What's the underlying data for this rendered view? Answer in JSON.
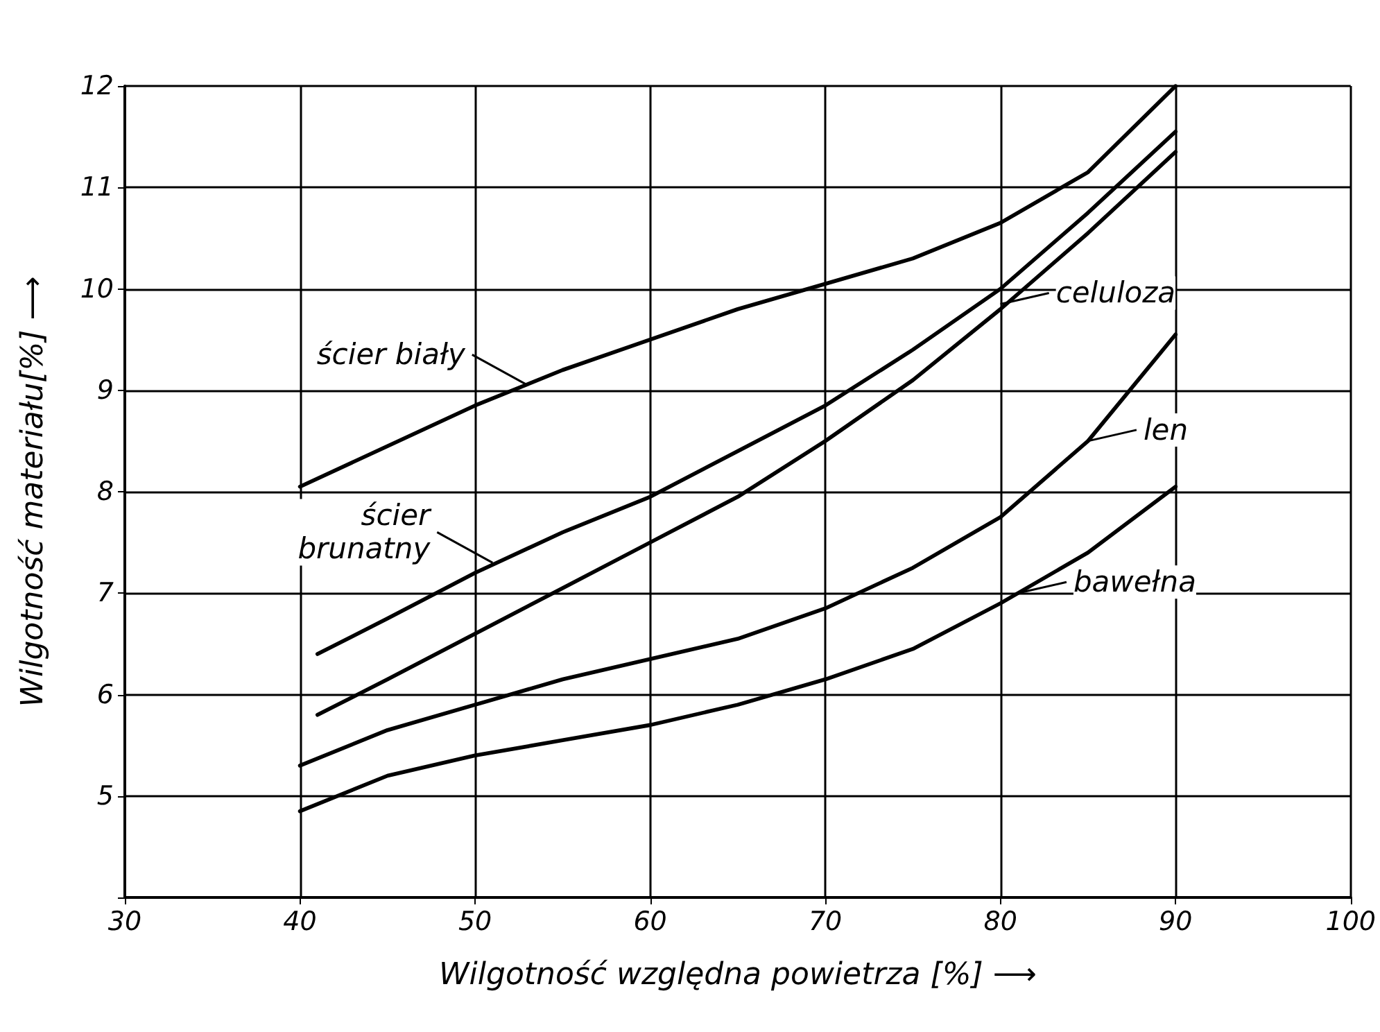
{
  "chart_data": {
    "type": "line",
    "xlabel": "Wilgotność względna powietrza [%] ⟶",
    "ylabel": "Wilgotność materiału[%] ⟶",
    "xlim": [
      30,
      100
    ],
    "xticks": [
      30,
      40,
      50,
      60,
      70,
      80,
      90,
      100
    ],
    "ylim": [
      4,
      12
    ],
    "yticks": [
      {
        "value": 4,
        "label": null
      },
      5,
      6,
      7,
      8,
      9,
      10,
      11,
      12
    ],
    "grid": true,
    "marker": "none",
    "line_style": "solid",
    "series": [
      {
        "color": "#000000",
        "x": [
          40,
          45,
          50,
          55,
          60,
          65,
          70,
          75,
          80,
          85,
          90
        ],
        "values": [
          8.05,
          8.45,
          8.85,
          9.2,
          9.5,
          9.8,
          10.05,
          10.3,
          10.65,
          11.15,
          12
        ]
      },
      {
        "color": "#000000",
        "x": [
          41,
          45,
          50,
          55,
          60,
          65,
          70,
          75,
          80,
          85,
          90
        ],
        "values": [
          6.4,
          6.75,
          7.2,
          7.6,
          7.95,
          8.4,
          8.85,
          9.4,
          10.0,
          10.75,
          11.55
        ]
      },
      {
        "color": "#000000",
        "x": [
          41,
          45,
          50,
          55,
          60,
          65,
          70,
          75,
          80,
          85,
          90
        ],
        "values": [
          5.8,
          6.15,
          6.6,
          7.05,
          7.5,
          7.95,
          8.5,
          9.1,
          9.8,
          10.55,
          11.35
        ]
      },
      {
        "color": "#000000",
        "x": [
          40,
          45,
          50,
          55,
          60,
          65,
          70,
          75,
          80,
          85,
          90
        ],
        "values": [
          5.3,
          5.65,
          5.9,
          6.15,
          6.35,
          6.55,
          6.85,
          7.25,
          7.75,
          8.5,
          9.55
        ]
      },
      {
        "color": "#000000",
        "x": [
          40,
          45,
          50,
          55,
          60,
          65,
          70,
          75,
          80,
          85,
          90
        ],
        "values": [
          4.85,
          5.2,
          5.4,
          5.55,
          5.7,
          5.9,
          6.15,
          6.45,
          6.9,
          7.4,
          8.05
        ]
      }
    ],
    "annotations": [
      {
        "text": "ścier biały",
        "x": 53,
        "y": 9.05
      },
      {
        "text": "ścier\nbrunatny",
        "x": 51,
        "y": 7.3
      },
      {
        "text": "celuloza",
        "x": 80,
        "y": 9.85
      },
      {
        "text": "len",
        "x": 85,
        "y": 8.5
      },
      {
        "text": "bawełna",
        "x": 81,
        "y": 7.0
      }
    ]
  }
}
